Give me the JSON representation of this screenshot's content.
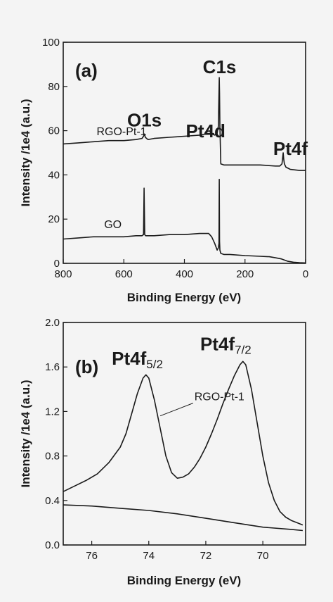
{
  "chart_data": [
    {
      "type": "line",
      "panel_label": "(a)",
      "xlabel": "Binding Energy (eV)",
      "ylabel": "Intensity /1e4 (a.u.)",
      "xlim": [
        800,
        0
      ],
      "ylim": [
        0,
        100
      ],
      "x_ticks": [
        800,
        600,
        400,
        200,
        0
      ],
      "y_ticks": [
        0,
        20,
        40,
        60,
        80,
        100
      ],
      "annotations": [
        {
          "text": "O1s",
          "x": 532,
          "y": 62
        },
        {
          "text": "Pt4d",
          "x": 330,
          "y": 57
        },
        {
          "text": "C1s",
          "x": 284,
          "y": 86
        },
        {
          "text": "Pt4f",
          "x": 50,
          "y": 49
        }
      ],
      "series": [
        {
          "name": "RGO-Pt-1",
          "label_at": {
            "x": 690,
            "y": 58
          },
          "x": [
            800,
            750,
            700,
            650,
            600,
            560,
            540,
            535,
            532,
            529,
            525,
            520,
            500,
            450,
            400,
            350,
            330,
            325,
            318,
            310,
            300,
            292,
            288,
            285,
            284,
            283,
            280,
            270,
            250,
            200,
            150,
            100,
            85,
            78,
            74,
            72,
            70,
            65,
            50,
            20,
            0
          ],
          "y": [
            54,
            54.5,
            55,
            55.5,
            55.5,
            56,
            56.5,
            57.5,
            58.5,
            57,
            56.5,
            56,
            56.5,
            57,
            57.5,
            58,
            58.5,
            59.5,
            60,
            58.5,
            58,
            59,
            62,
            84,
            77,
            62,
            45,
            44.5,
            44.5,
            44.5,
            44.5,
            44,
            44,
            45,
            50,
            47,
            45,
            43.5,
            42.5,
            42,
            42
          ]
        },
        {
          "name": "GO",
          "label_at": {
            "x": 665,
            "y": 16
          },
          "x": [
            800,
            750,
            700,
            650,
            600,
            560,
            540,
            535,
            533,
            531,
            528,
            520,
            500,
            450,
            400,
            350,
            320,
            310,
            300,
            292,
            288,
            286,
            285,
            284,
            283,
            280,
            270,
            250,
            200,
            150,
            120,
            100,
            80,
            60,
            40,
            20,
            0
          ],
          "y": [
            11,
            11.5,
            12,
            12,
            12,
            12.5,
            12.5,
            13,
            34,
            13,
            12.5,
            12.5,
            12.5,
            13,
            13,
            13.5,
            13.5,
            12,
            9,
            6,
            7,
            9,
            38,
            10,
            6,
            4.5,
            4,
            4,
            3.5,
            3.2,
            3,
            2.5,
            2,
            1,
            0.5,
            0.3,
            0.2
          ]
        }
      ]
    },
    {
      "type": "line",
      "panel_label": "(b)",
      "xlabel": "Binding Energy (eV)",
      "ylabel": "Intensity /1e4 (a.u.)",
      "xlim": [
        77,
        68.5
      ],
      "ylim": [
        0,
        2.0
      ],
      "x_ticks": [
        76,
        74,
        72,
        70
      ],
      "y_ticks": [
        0.0,
        0.4,
        0.8,
        1.2,
        1.6,
        2.0
      ],
      "annotations": [
        {
          "text": "Pt4f",
          "sub": "5/2",
          "x": 74.4,
          "y": 1.62
        },
        {
          "text": "Pt4f",
          "sub": "7/2",
          "x": 71.3,
          "y": 1.75
        }
      ],
      "series": [
        {
          "name": "RGO-Pt-1",
          "label_at": {
            "x": 72.4,
            "y": 1.3
          },
          "leader_to": {
            "x": 73.6,
            "y": 1.16
          },
          "x": [
            77,
            76.6,
            76.2,
            75.8,
            75.4,
            75.0,
            74.8,
            74.6,
            74.4,
            74.2,
            74.1,
            74.0,
            73.8,
            73.6,
            73.4,
            73.2,
            73.0,
            72.8,
            72.6,
            72.4,
            72.2,
            72.0,
            71.8,
            71.6,
            71.4,
            71.2,
            71.0,
            70.8,
            70.7,
            70.6,
            70.4,
            70.2,
            70.0,
            69.8,
            69.6,
            69.4,
            69.2,
            69.0,
            68.8,
            68.6
          ],
          "y": [
            0.48,
            0.53,
            0.58,
            0.64,
            0.74,
            0.88,
            1.0,
            1.18,
            1.36,
            1.5,
            1.53,
            1.5,
            1.3,
            1.05,
            0.8,
            0.65,
            0.6,
            0.61,
            0.64,
            0.7,
            0.78,
            0.88,
            1.0,
            1.13,
            1.27,
            1.4,
            1.52,
            1.62,
            1.65,
            1.62,
            1.4,
            1.1,
            0.8,
            0.56,
            0.4,
            0.3,
            0.25,
            0.22,
            0.2,
            0.18
          ]
        },
        {
          "name": "baseline",
          "x": [
            77,
            76,
            75,
            74,
            73,
            72,
            71,
            70,
            69,
            68.6
          ],
          "y": [
            0.36,
            0.35,
            0.33,
            0.31,
            0.28,
            0.24,
            0.2,
            0.16,
            0.14,
            0.13
          ]
        }
      ]
    }
  ]
}
